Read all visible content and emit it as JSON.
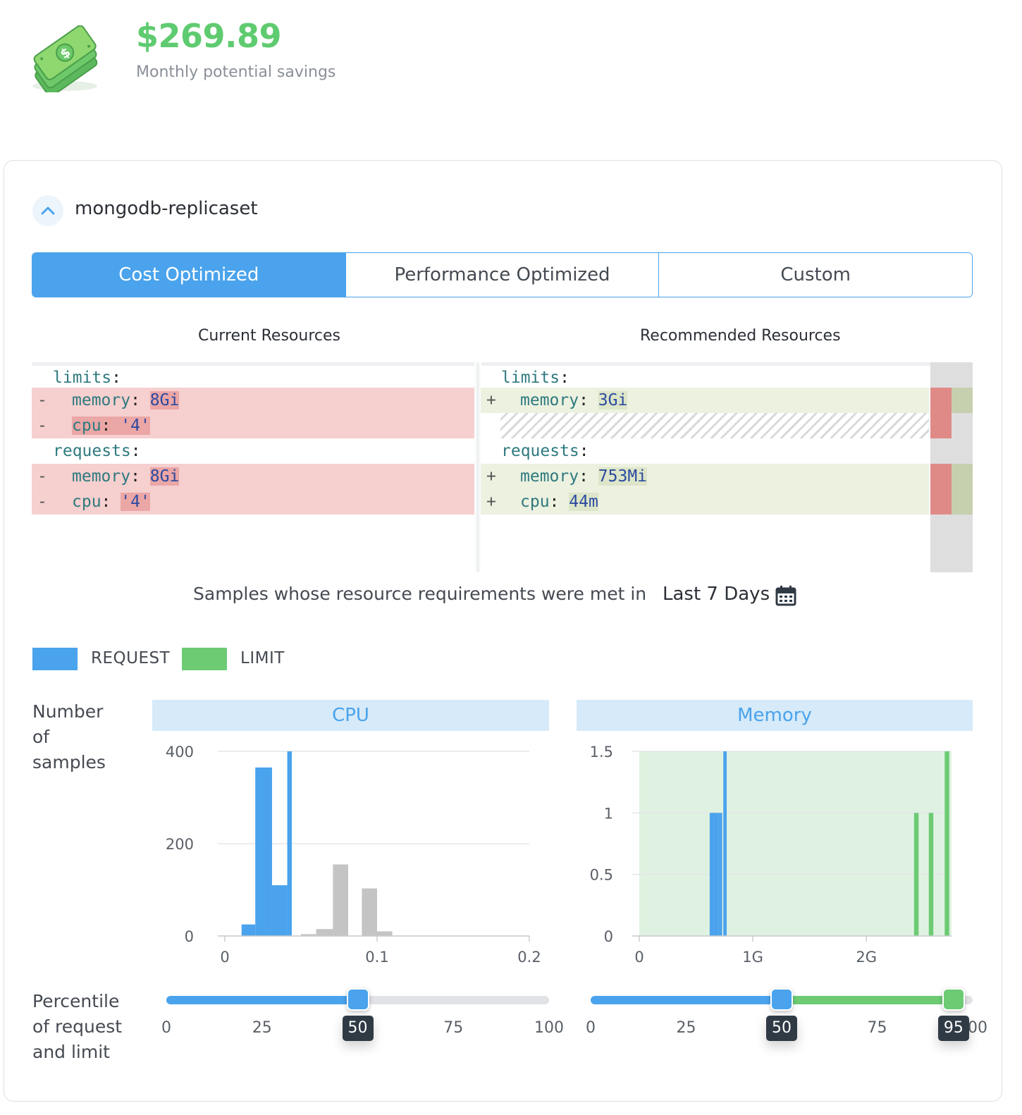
{
  "savings": {
    "amount": "$269.89",
    "label": "Monthly potential savings",
    "icon": "money-stack-icon",
    "color": "#5fcb70"
  },
  "workload": {
    "name": "mongodb-replicaset",
    "expanded": true
  },
  "tabs": [
    {
      "label": "Cost Optimized",
      "active": true
    },
    {
      "label": "Performance Optimized",
      "active": false
    },
    {
      "label": "Custom",
      "active": false
    }
  ],
  "diff": {
    "current_title": "Current Resources",
    "recommended_title": "Recommended Resources",
    "current": {
      "limits": "limits",
      "limits_memory": {
        "key": "memory",
        "value": "8Gi"
      },
      "limits_cpu": {
        "key": "cpu",
        "value": "'4'"
      },
      "requests": "requests",
      "requests_memory": {
        "key": "memory",
        "value": "8Gi"
      },
      "requests_cpu": {
        "key": "cpu",
        "value": "'4'"
      }
    },
    "recommended": {
      "limits": "limits",
      "limits_memory": {
        "key": "memory",
        "value": "3Gi"
      },
      "requests": "requests",
      "requests_memory": {
        "key": "memory",
        "value": "753Mi"
      },
      "requests_cpu": {
        "key": "cpu",
        "value": "44m"
      }
    },
    "del_marker": "-",
    "add_marker": "+"
  },
  "samples": {
    "text": "Samples whose resource requirements were met in",
    "range": "Last 7 Days"
  },
  "legend": {
    "request": "REQUEST",
    "limit": "LIMIT",
    "request_color": "#4aa3ec",
    "limit_color": "#6ccb73"
  },
  "side_labels": {
    "samples": [
      "Number",
      "of",
      "samples"
    ],
    "percentile": [
      "Percentile",
      "of request",
      "and limit"
    ]
  },
  "chart_data": [
    {
      "type": "bar",
      "title": "CPU",
      "ylabel": "Number of samples",
      "xlim": [
        0,
        0.2
      ],
      "ylim": [
        0,
        400
      ],
      "x_ticks": [
        "0",
        "0.1",
        "0.2"
      ],
      "y_ticks": [
        "0",
        "200",
        "400"
      ],
      "grid": true,
      "series": [
        {
          "name": "REQUEST",
          "color": "#4aa3ec",
          "bins": [
            [
              0.011,
              0.02,
              25
            ],
            [
              0.02,
              0.031,
              365
            ],
            [
              0.031,
              0.041,
              110
            ],
            [
              0.041,
              0.044,
              400
            ]
          ]
        },
        {
          "name": "",
          "color": "#c4c4c4",
          "bins": [
            [
              0.05,
              0.06,
              4
            ],
            [
              0.06,
              0.071,
              15
            ],
            [
              0.071,
              0.081,
              155
            ],
            [
              0.09,
              0.1,
              103
            ],
            [
              0.1,
              0.11,
              10
            ]
          ]
        }
      ]
    },
    {
      "type": "bar",
      "title": "Memory",
      "xlim": [
        0,
        2.75
      ],
      "ylim": [
        0,
        1.5
      ],
      "x_ticks": [
        "0",
        "1G",
        "2G"
      ],
      "y_ticks": [
        "0",
        "0.5",
        "1",
        "1.5"
      ],
      "grid": true,
      "limit_band": [
        0,
        2.75
      ],
      "series": [
        {
          "name": "REQUEST",
          "color": "#4aa3ec",
          "bins": [
            [
              0.62,
              0.7,
              1
            ],
            [
              0.7,
              0.73,
              1
            ],
            [
              0.74,
              0.77,
              1.5
            ]
          ]
        },
        {
          "name": "LIMIT",
          "color": "#6ccb73",
          "bins": [
            [
              2.42,
              2.46,
              1
            ],
            [
              2.55,
              2.59,
              1
            ],
            [
              2.69,
              2.73,
              1.5
            ]
          ]
        }
      ]
    }
  ],
  "sliders": {
    "cpu": {
      "ticks": [
        "0",
        "25",
        "50",
        "75",
        "100"
      ],
      "request": 50,
      "request_label": "50"
    },
    "memory": {
      "ticks": [
        "0",
        "25",
        "50",
        "75",
        "100"
      ],
      "request": 50,
      "request_label": "50",
      "limit": 95,
      "limit_label": "95"
    }
  }
}
